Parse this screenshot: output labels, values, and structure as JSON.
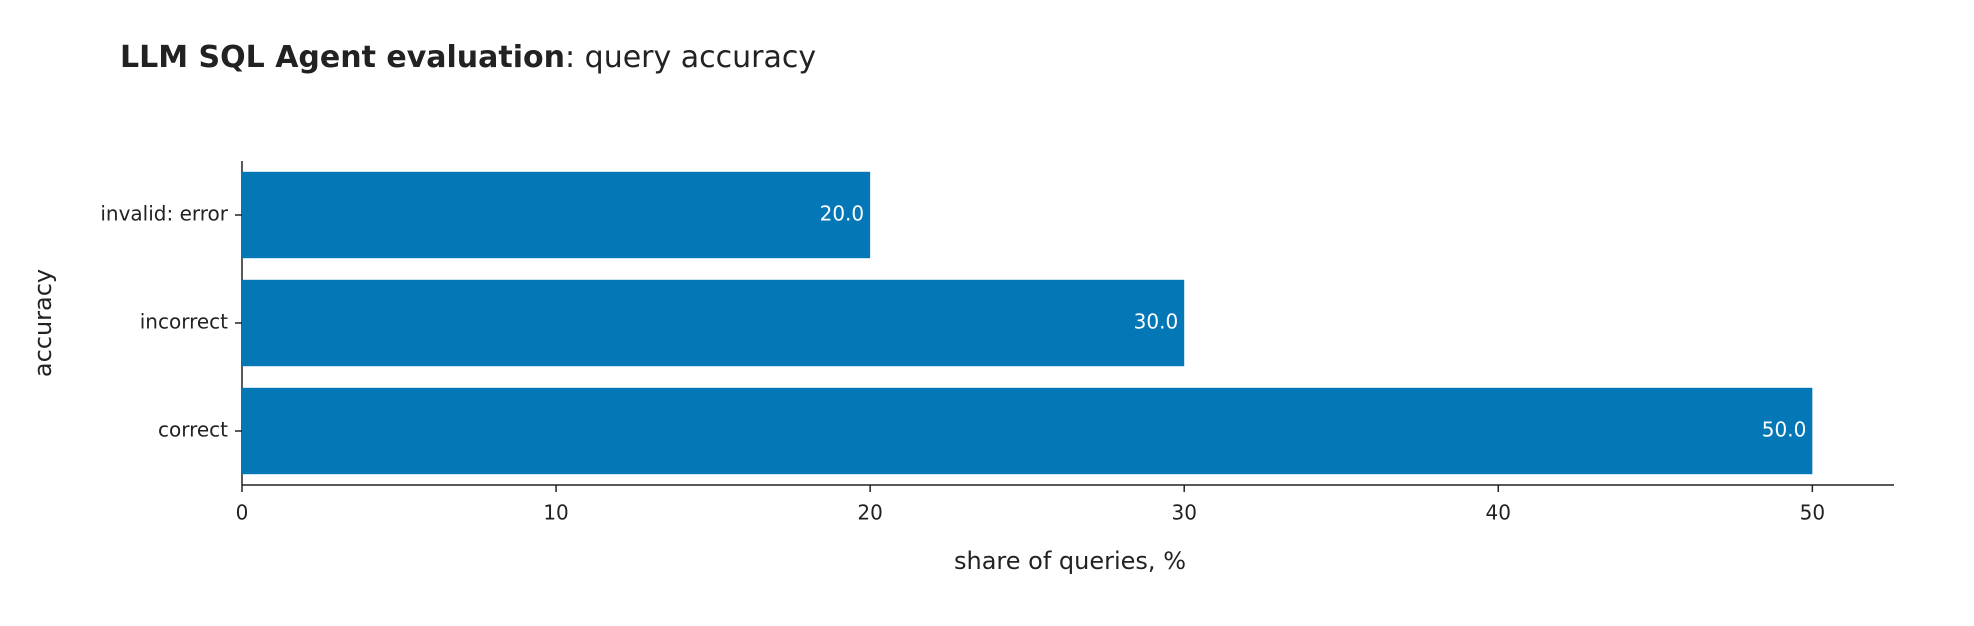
{
  "chart_data": {
    "type": "barh",
    "title": {
      "bold": "LLM SQL Agent evaluation",
      "rest": ": query accuracy"
    },
    "xlabel": "share of queries, %",
    "ylabel": "accuracy",
    "categories": [
      "correct",
      "incorrect",
      "invalid: error"
    ],
    "values": [
      50,
      30,
      20
    ],
    "value_labels": [
      "50.0",
      "30.0",
      "20.0"
    ],
    "color": "#0477b6",
    "xlim": [
      0,
      52.6
    ],
    "xticks": [
      0,
      10,
      20,
      30,
      40,
      50
    ],
    "grid": false
  }
}
